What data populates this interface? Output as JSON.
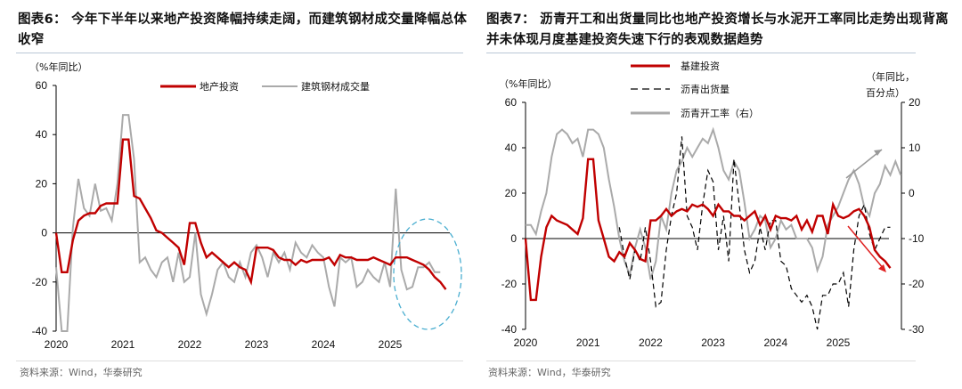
{
  "left": {
    "title_prefix": "图表6：",
    "title": "今年下半年以来地产投资降幅持续走阔，而建筑钢材成交量降幅总体收窄",
    "source": "资料来源：Wind，华泰研究"
  },
  "right": {
    "title_prefix": "图表7：",
    "title": "沥青开工和出货量同比也地产投资增长与水泥开工率同比走势出现背离并未体现月度基建投资失速下行的表观数据趋势",
    "source": "资料来源：Wind，华泰研究"
  },
  "chart_data": [
    {
      "type": "line",
      "title": "今年下半年以来地产投资降幅持续走阔，而建筑钢材成交量降幅总体收窄",
      "ylabel": "（%年同比）",
      "ylim": [
        -40,
        60
      ],
      "yticks": [
        -40,
        -20,
        0,
        20,
        40,
        60
      ],
      "xticks": [
        "2020",
        "2021",
        "2022",
        "2023",
        "2024",
        "2025"
      ],
      "x_start": "2020-01",
      "freq": "monthly",
      "series": [
        {
          "name": "地产投资",
          "color": "#c00000",
          "values": [
            0,
            -16,
            -16,
            -3,
            5,
            7,
            8,
            8,
            11,
            12,
            12,
            12,
            38,
            38,
            15,
            14,
            10,
            6,
            1,
            0,
            -2,
            -4,
            -6,
            -13,
            4,
            4,
            -4,
            -10,
            -8,
            -10,
            -12,
            -14,
            -12,
            -14,
            -15,
            -20,
            -6,
            -6,
            -6,
            -7,
            -10,
            -11,
            -11,
            -13,
            -11,
            -12,
            -11,
            -11,
            -11,
            -10,
            -13,
            -9,
            -10,
            -10,
            -11,
            -11,
            -11,
            -10,
            -11,
            -12,
            -13,
            -10,
            -10,
            -10,
            -11,
            -12,
            -13,
            -15,
            -18,
            -20,
            -23
          ]
        },
        {
          "name": "建筑钢材成交量",
          "color": "#aaaaaa",
          "values": [
            -14,
            -40,
            -40,
            2,
            22,
            10,
            7,
            20,
            9,
            10,
            5,
            20,
            48,
            48,
            30,
            -12,
            -10,
            -15,
            -18,
            -12,
            -10,
            -20,
            -8,
            -20,
            -18,
            0,
            -25,
            -33,
            -25,
            -15,
            -12,
            -18,
            -20,
            -12,
            -18,
            -8,
            -5,
            -10,
            -18,
            -8,
            -12,
            -8,
            -15,
            -4,
            -8,
            -10,
            -5,
            -8,
            -10,
            -22,
            -30,
            -10,
            -12,
            -10,
            -22,
            -20,
            -15,
            -18,
            -20,
            -12,
            -22,
            18,
            -15,
            -23,
            -22,
            -14,
            -14,
            -12,
            -16,
            -16
          ]
        }
      ]
    },
    {
      "type": "line",
      "title": "沥青开工和出货量同比也地产投资增长与水泥开工率同比走势出现背离",
      "ylabel": "（%年同比）",
      "ylabel_right": "（年同比，百分点）",
      "ylim": [
        -40,
        60
      ],
      "ylim_right": [
        -30,
        20
      ],
      "yticks": [
        -40,
        -20,
        0,
        20,
        40,
        60
      ],
      "yticks_right": [
        -30,
        -20,
        -10,
        0,
        10,
        20
      ],
      "xticks": [
        "2020",
        "2021",
        "2022",
        "2023",
        "2024",
        "2025"
      ],
      "x_start": "2020-01",
      "freq": "monthly",
      "series": [
        {
          "name": "基建投资",
          "color": "#c00000",
          "axis": "left",
          "start": 0,
          "values": [
            0,
            -27,
            -27,
            -8,
            5,
            10,
            8,
            7,
            6,
            4,
            2,
            9,
            35,
            35,
            8,
            0,
            -8,
            -10,
            -6,
            -8,
            -2,
            -5,
            -9,
            -10,
            8,
            8,
            10,
            13,
            10,
            12,
            13,
            12,
            15,
            14,
            15,
            13,
            10,
            15,
            12,
            12,
            10,
            10,
            8,
            10,
            12,
            6,
            10,
            4,
            10,
            9,
            9,
            8,
            10,
            4,
            8,
            3,
            10,
            10,
            2,
            15,
            10,
            9,
            10,
            12,
            13,
            10,
            5,
            -5,
            -8,
            -10,
            -13
          ]
        },
        {
          "name": "沥青出货量",
          "color": "#000000",
          "axis": "left",
          "dashed": true,
          "start": 18,
          "values": [
            5,
            -8,
            -18,
            -5,
            -10,
            5,
            -10,
            -30,
            -28,
            -5,
            10,
            20,
            45,
            10,
            5,
            -5,
            15,
            30,
            25,
            -5,
            10,
            -10,
            35,
            15,
            -5,
            -15,
            -10,
            5,
            -5,
            8,
            8,
            -10,
            -12,
            -22,
            -25,
            -28,
            -25,
            -30,
            -40,
            -25,
            -25,
            -20,
            -20,
            -15,
            -30,
            -5,
            10,
            15,
            2,
            -5,
            0,
            5,
            5
          ]
        },
        {
          "name": "沥青开工率（右）",
          "color": "#aaaaaa",
          "axis": "right",
          "start": 0,
          "values": [
            -7,
            -7,
            -9,
            -4,
            0,
            8,
            13,
            14,
            13,
            11,
            12,
            8,
            14,
            14,
            13,
            10,
            3,
            -3,
            -10,
            -15,
            -18,
            -12,
            -8,
            -12,
            -19,
            -15,
            -5,
            -8,
            0,
            5,
            7,
            10,
            8,
            10,
            12,
            11,
            14,
            10,
            5,
            3,
            7,
            5,
            -2,
            -10,
            -8,
            -5,
            -6,
            -12,
            -10,
            -6,
            -8,
            -7,
            -10,
            -10,
            -10,
            -12,
            -17,
            -14,
            -7,
            -5,
            -3,
            0,
            3,
            5,
            2,
            -3,
            -5,
            0,
            2,
            6,
            4,
            7,
            4
          ]
        }
      ]
    }
  ]
}
